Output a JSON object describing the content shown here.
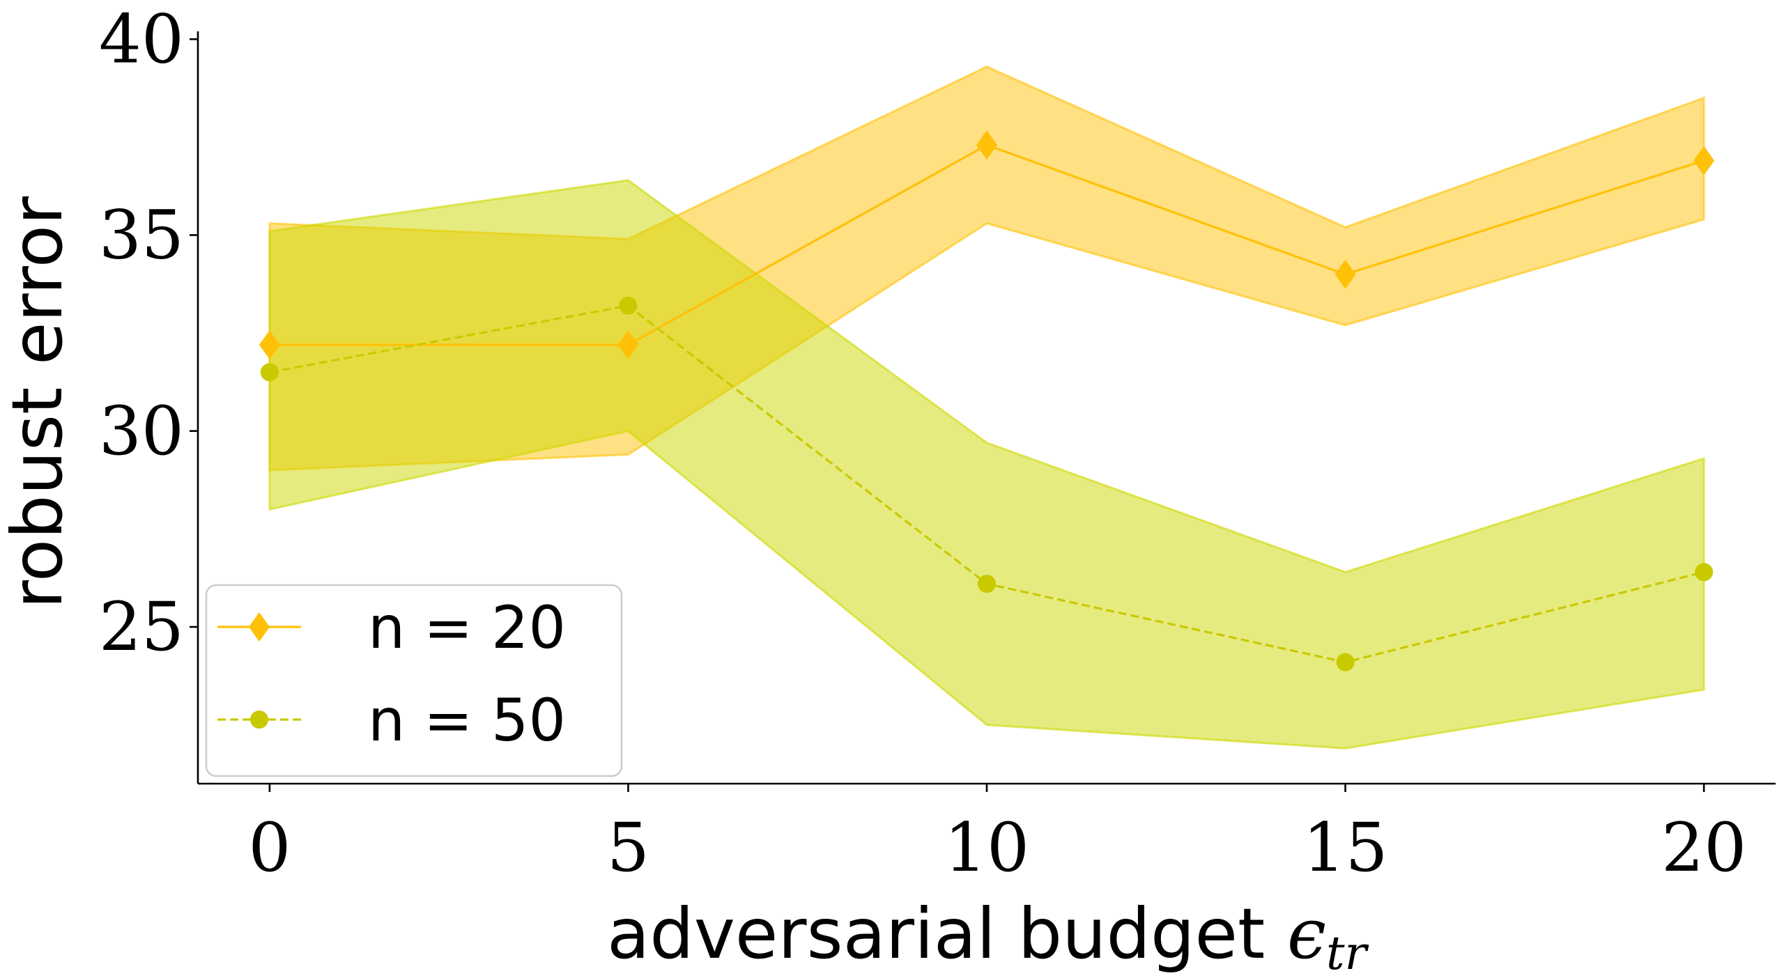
{
  "chart_data": {
    "type": "line",
    "title": "",
    "xlabel_main": "adversarial budget ",
    "xlabel_symbol": "ϵ",
    "xlabel_subscript": "tr",
    "ylabel": "robust error",
    "xlim": [
      -1,
      21
    ],
    "ylim": [
      21,
      40.2
    ],
    "xticks": [
      0,
      5,
      10,
      15,
      20
    ],
    "yticks": [
      25,
      30,
      35,
      40
    ],
    "x": [
      0,
      5,
      10,
      15,
      20
    ],
    "legend_position": "lower-left",
    "grid": false,
    "series": [
      {
        "name": "n = 20",
        "marker": "diamond",
        "line_style": "solid",
        "color": "#FFC107",
        "band_color": "#FFC107",
        "values": [
          32.2,
          32.2,
          37.3,
          34.0,
          36.9
        ],
        "lower": [
          29.0,
          29.4,
          35.3,
          32.7,
          35.4
        ],
        "upper": [
          35.3,
          34.9,
          39.3,
          35.2,
          38.5
        ]
      },
      {
        "name": "n = 50",
        "marker": "circle",
        "line_style": "dashed",
        "color": "#C9C900",
        "band_color": "#CDD800",
        "values": [
          31.5,
          33.2,
          26.1,
          24.1,
          26.4
        ],
        "lower": [
          28.0,
          30.0,
          22.5,
          21.9,
          23.4
        ],
        "upper": [
          35.1,
          36.4,
          29.7,
          26.4,
          29.3
        ]
      }
    ]
  }
}
